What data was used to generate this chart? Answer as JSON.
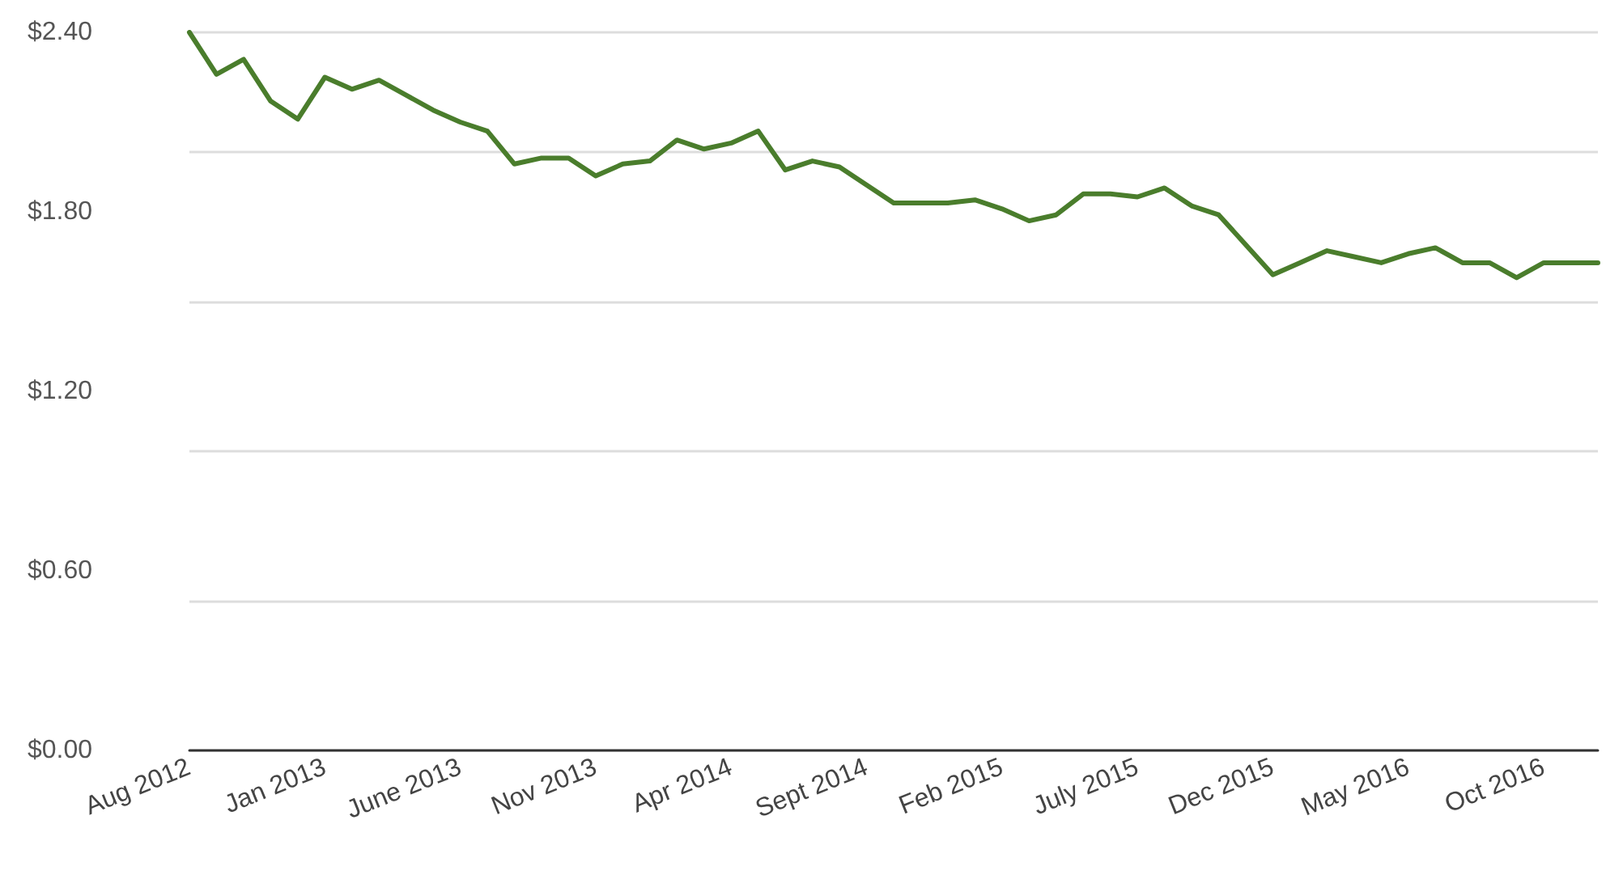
{
  "chart_data": {
    "type": "line",
    "categories": [
      "Aug 2012",
      null,
      null,
      null,
      null,
      "Jan 2013",
      null,
      null,
      null,
      null,
      "June 2013",
      null,
      null,
      null,
      null,
      "Nov 2013",
      null,
      null,
      null,
      null,
      "Apr 2014",
      null,
      null,
      null,
      null,
      "Sept 2014",
      null,
      null,
      null,
      null,
      "Feb 2015",
      null,
      null,
      null,
      null,
      "July 2015",
      null,
      null,
      null,
      null,
      "Dec 2015",
      null,
      null,
      null,
      null,
      "May 2016",
      null,
      null,
      null,
      null,
      "Oct 2016",
      null,
      null
    ],
    "series": [
      {
        "color": "#4a7d2c",
        "values": [
          2.4,
          2.26,
          2.31,
          2.17,
          2.11,
          2.25,
          2.21,
          2.24,
          2.19,
          2.14,
          2.1,
          2.07,
          1.96,
          1.98,
          1.98,
          1.92,
          1.96,
          1.97,
          2.04,
          2.01,
          2.03,
          2.07,
          1.94,
          1.97,
          1.95,
          1.89,
          1.83,
          1.83,
          1.83,
          1.84,
          1.81,
          1.77,
          1.79,
          1.86,
          1.86,
          1.85,
          1.88,
          1.82,
          1.79,
          1.69,
          1.59,
          1.63,
          1.67,
          1.65,
          1.63,
          1.66,
          1.68,
          1.63,
          1.63,
          1.58,
          1.63,
          1.63,
          1.63
        ]
      }
    ],
    "ylim": [
      0,
      2.4
    ],
    "yticks": [
      {
        "value": 0,
        "label": "$0.00"
      },
      {
        "value": 0.6,
        "label": "$0.60"
      },
      {
        "value": 1.2,
        "label": "$1.20"
      },
      {
        "value": 1.8,
        "label": "$1.80"
      },
      {
        "value": 2.4,
        "label": "$2.40"
      }
    ],
    "grid": "y",
    "marker": "none",
    "line_style": "solid"
  }
}
